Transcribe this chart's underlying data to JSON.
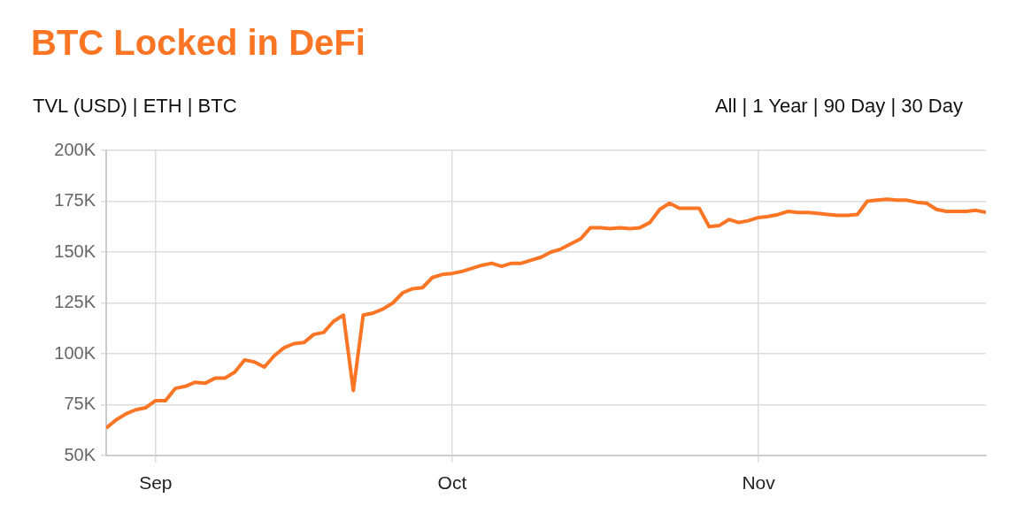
{
  "chart_data": {
    "type": "line",
    "title": "BTC Locked in DeFi",
    "annotations": [
      "TVL (USD) | ETH | BTC",
      "All | 1 Year | 90 Day | 30 Day"
    ],
    "x": [
      "--08-27",
      "--08-28",
      "--08-29",
      "--08-30",
      "--08-31",
      "--09-01",
      "--09-02",
      "--09-03",
      "--09-04",
      "--09-05",
      "--09-06",
      "--09-07",
      "--09-08",
      "--09-09",
      "--09-10",
      "--09-11",
      "--09-12",
      "--09-13",
      "--09-14",
      "--09-15",
      "--09-16",
      "--09-17",
      "--09-18",
      "--09-19",
      "--09-20",
      "--09-21",
      "--09-22",
      "--09-23",
      "--09-24",
      "--09-25",
      "--09-26",
      "--09-27",
      "--09-28",
      "--09-29",
      "--09-30",
      "--10-01",
      "--10-02",
      "--10-03",
      "--10-04",
      "--10-05",
      "--10-06",
      "--10-07",
      "--10-08",
      "--10-09",
      "--10-10",
      "--10-11",
      "--10-12",
      "--10-13",
      "--10-14",
      "--10-15",
      "--10-16",
      "--10-17",
      "--10-18",
      "--10-19",
      "--10-20",
      "--10-21",
      "--10-22",
      "--10-23",
      "--10-24",
      "--10-25",
      "--10-26",
      "--10-27",
      "--10-28",
      "--10-29",
      "--10-30",
      "--10-31",
      "--11-01",
      "--11-02",
      "--11-03",
      "--11-04",
      "--11-05",
      "--11-06",
      "--11-07",
      "--11-08",
      "--11-09",
      "--11-10",
      "--11-11",
      "--11-12",
      "--11-13",
      "--11-14",
      "--11-15",
      "--11-16",
      "--11-17",
      "--11-18",
      "--11-19",
      "--11-20",
      "--11-21",
      "--11-22",
      "--11-23",
      "--11-24"
    ],
    "series": [
      {
        "color": "#fb7524",
        "values": [
          63.5,
          67.5,
          70.5,
          72.5,
          73.5,
          77,
          77,
          83,
          84,
          86,
          85.5,
          88,
          88,
          91,
          97,
          96,
          93.5,
          99,
          103,
          105,
          105.5,
          109.5,
          110.5,
          116,
          119,
          82,
          119,
          120,
          122,
          125,
          130,
          132,
          132.5,
          137.5,
          139,
          139.5,
          140.5,
          142,
          143.5,
          144.5,
          143,
          144.5,
          144.5,
          146,
          147.5,
          150,
          151.5,
          154,
          156.5,
          162,
          162,
          161.5,
          162,
          161.5,
          162,
          164.5,
          171,
          174,
          171.5,
          171.5,
          171.5,
          162.5,
          163,
          166,
          164.5,
          165.5,
          167,
          167.5,
          168.5,
          170,
          169.5,
          169.5,
          169,
          168.5,
          168,
          168,
          168.5,
          175,
          175.5,
          176,
          175.5,
          175.5,
          174.5,
          174,
          171,
          170,
          170,
          170,
          170.5,
          169.5
        ]
      }
    ],
    "xlim": [
      "--08-27",
      "--11-24"
    ],
    "xticks": [
      {
        "value": "--09-01",
        "label": "Sep"
      },
      {
        "value": "--10-01",
        "label": "Oct"
      },
      {
        "value": "--11-01",
        "label": "Nov"
      }
    ],
    "ylim": [
      50,
      200
    ],
    "yticks": [
      {
        "value": 50,
        "label": "50K"
      },
      {
        "value": 75,
        "label": "75K"
      },
      {
        "value": 100,
        "label": "100K"
      },
      {
        "value": 125,
        "label": "125K"
      },
      {
        "value": 150,
        "label": "150K"
      },
      {
        "value": 175,
        "label": "175K"
      },
      {
        "value": 200,
        "label": "200K"
      }
    ],
    "grid": true,
    "legend": false,
    "marker": "none",
    "line_style": "solid"
  }
}
